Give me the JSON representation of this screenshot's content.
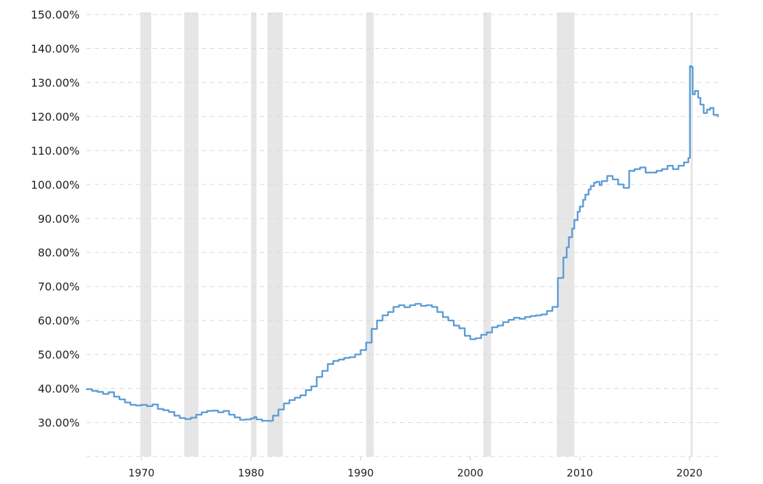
{
  "chart_data": {
    "type": "line",
    "title": "",
    "xlabel": "",
    "ylabel": "",
    "xlim": [
      1965.0,
      2022.7
    ],
    "ylim": [
      20,
      150
    ],
    "y_ticks": [
      30,
      40,
      50,
      60,
      70,
      80,
      90,
      100,
      110,
      120,
      130,
      140,
      150
    ],
    "y_tick_labels": [
      "30.00%",
      "40.00%",
      "50.00%",
      "60.00%",
      "70.00%",
      "80.00%",
      "90.00%",
      "100.00%",
      "110.00%",
      "120.00%",
      "130.00%",
      "140.00%",
      "150.00%"
    ],
    "x_ticks": [
      1970,
      1980,
      1990,
      2000,
      2010,
      2020
    ],
    "x_tick_labels": [
      "1970",
      "1980",
      "1990",
      "2000",
      "2010",
      "2020"
    ],
    "grid": "horizontal dashed",
    "shaded_periods": [
      [
        1969.9,
        1970.9
      ],
      [
        1973.9,
        1975.2
      ],
      [
        1980.0,
        1980.5
      ],
      [
        1981.5,
        1982.9
      ],
      [
        1990.5,
        1991.2
      ],
      [
        2001.2,
        2001.9
      ],
      [
        2007.9,
        2009.5
      ],
      [
        2020.1,
        2020.3
      ]
    ],
    "series": [
      {
        "color": "#5b9bd5",
        "x": [
          1965.0,
          1965.5,
          1966.0,
          1966.5,
          1967.0,
          1967.5,
          1968.0,
          1968.5,
          1969.0,
          1969.5,
          1970.0,
          1970.5,
          1971.0,
          1971.5,
          1972.0,
          1972.5,
          1973.0,
          1973.5,
          1974.0,
          1974.5,
          1975.0,
          1975.5,
          1976.0,
          1976.5,
          1977.0,
          1977.5,
          1978.0,
          1978.5,
          1979.0,
          1979.5,
          1980.0,
          1980.3,
          1980.5,
          1981.0,
          1981.5,
          1982.0,
          1982.5,
          1983.0,
          1983.5,
          1984.0,
          1984.5,
          1985.0,
          1985.5,
          1986.0,
          1986.5,
          1987.0,
          1987.5,
          1988.0,
          1988.5,
          1989.0,
          1989.5,
          1990.0,
          1990.5,
          1991.0,
          1991.5,
          1992.0,
          1992.5,
          1993.0,
          1993.5,
          1994.0,
          1994.5,
          1995.0,
          1995.5,
          1996.0,
          1996.5,
          1997.0,
          1997.5,
          1998.0,
          1998.5,
          1999.0,
          1999.5,
          2000.0,
          2000.5,
          2001.0,
          2001.5,
          2002.0,
          2002.5,
          2003.0,
          2003.5,
          2004.0,
          2004.5,
          2005.0,
          2005.5,
          2006.0,
          2006.5,
          2007.0,
          2007.5,
          2008.0,
          2008.5,
          2008.8,
          2009.0,
          2009.3,
          2009.5,
          2009.8,
          2010.0,
          2010.3,
          2010.5,
          2010.8,
          2011.0,
          2011.3,
          2011.5,
          2011.8,
          2012.0,
          2012.5,
          2013.0,
          2013.5,
          2014.0,
          2014.5,
          2015.0,
          2015.5,
          2016.0,
          2016.5,
          2017.0,
          2017.5,
          2018.0,
          2018.5,
          2019.0,
          2019.5,
          2019.9,
          2020.05,
          2020.2,
          2020.3,
          2020.5,
          2020.8,
          2021.0,
          2021.3,
          2021.6,
          2021.9,
          2022.2,
          2022.6
        ],
        "y": [
          39.8,
          39.3,
          39.0,
          38.4,
          38.9,
          37.6,
          36.8,
          35.9,
          35.2,
          35.0,
          35.2,
          34.8,
          35.3,
          34.0,
          33.6,
          33.1,
          32.0,
          31.3,
          31.0,
          31.4,
          32.3,
          33.0,
          33.4,
          33.5,
          33.0,
          33.4,
          32.3,
          31.5,
          30.8,
          30.9,
          31.2,
          31.6,
          30.9,
          30.5,
          30.5,
          32.0,
          33.8,
          35.6,
          36.6,
          37.3,
          38.0,
          39.5,
          40.6,
          43.4,
          45.2,
          47.2,
          48.1,
          48.5,
          49.0,
          49.2,
          50.0,
          51.3,
          53.5,
          57.5,
          60.0,
          61.5,
          62.5,
          64.0,
          64.5,
          63.9,
          64.5,
          64.9,
          64.3,
          64.5,
          64.0,
          62.5,
          61.0,
          60.0,
          58.5,
          57.7,
          55.5,
          54.5,
          54.8,
          55.8,
          56.5,
          58.0,
          58.5,
          59.5,
          60.2,
          60.8,
          60.5,
          61.0,
          61.3,
          61.5,
          61.8,
          62.8,
          64.0,
          72.5,
          78.5,
          81.5,
          84.5,
          87.0,
          89.5,
          92.0,
          93.5,
          95.5,
          97.0,
          98.5,
          99.5,
          100.5,
          100.8,
          99.8,
          101.0,
          102.5,
          101.5,
          100.0,
          99.0,
          104.0,
          104.5,
          105.0,
          103.5,
          103.5,
          104.0,
          104.5,
          105.5,
          104.5,
          105.5,
          106.5,
          107.8,
          134.8,
          134.5,
          126.5,
          127.5,
          125.5,
          123.5,
          121.0,
          122.0,
          122.5,
          120.5,
          120.0
        ]
      }
    ]
  }
}
